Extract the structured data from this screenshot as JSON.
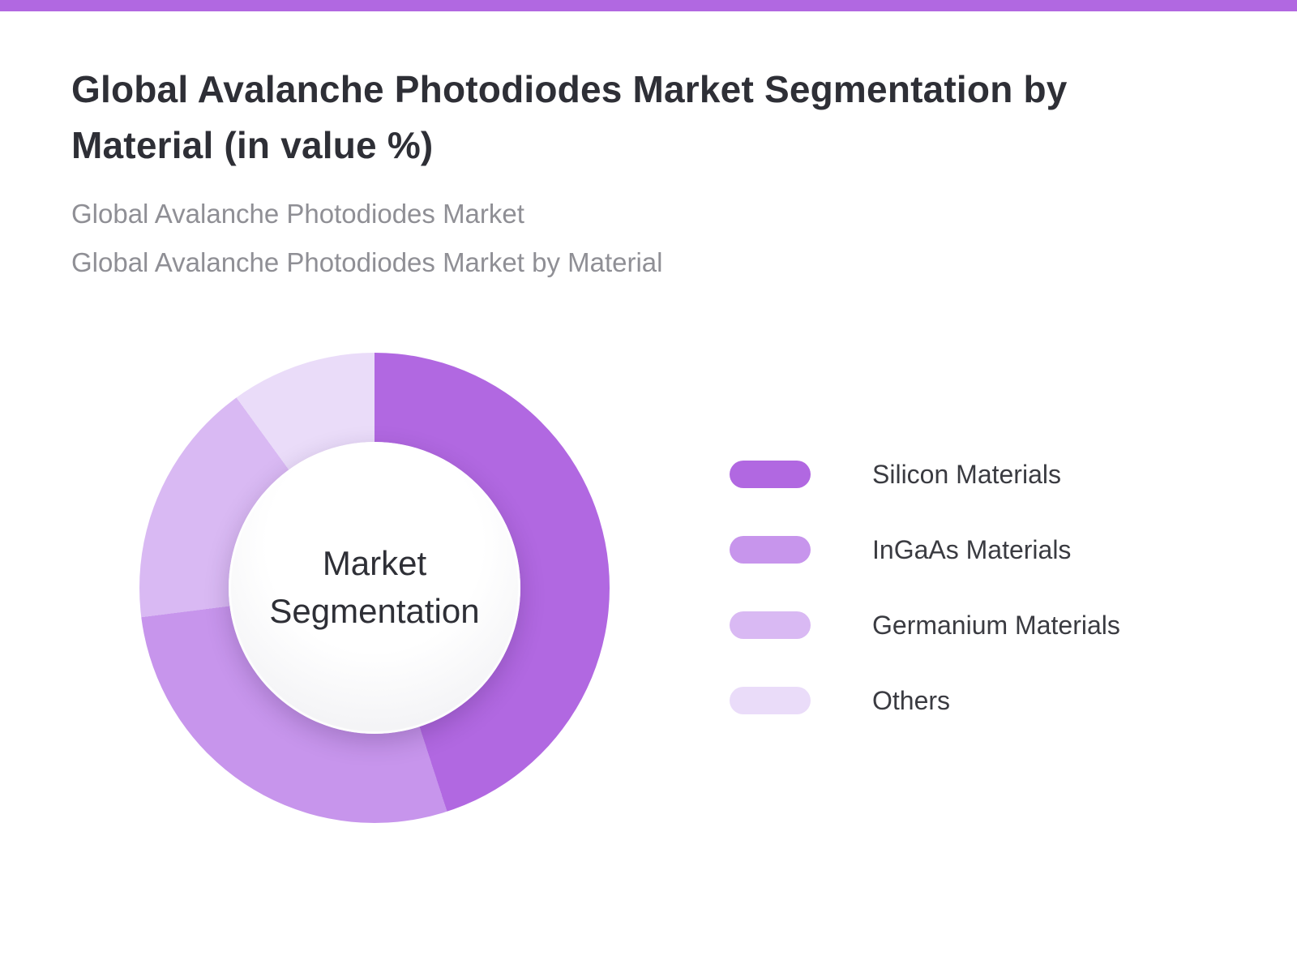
{
  "page": {
    "accent_color": "#b168e1",
    "title": "Global Avalanche Photodiodes Market Segmentation by Material (in value %)",
    "subtitle1": "Global Avalanche Photodiodes Market",
    "subtitle2": "Global Avalanche Photodiodes Market by Material"
  },
  "chart_data": {
    "type": "pie",
    "donut": true,
    "title": "Global Avalanche Photodiodes Market Segmentation by Material (in value %)",
    "center_label": "Market Segmentation",
    "legend_position": "right",
    "start_angle_deg": 0,
    "units": "value %",
    "categories": [
      "Silicon Materials",
      "InGaAs Materials",
      "Germanium Materials",
      "Others"
    ],
    "values": [
      45,
      28,
      17,
      10
    ],
    "colors": [
      "#b168e1",
      "#c795ec",
      "#d9b9f3",
      "#eadcf9"
    ]
  }
}
